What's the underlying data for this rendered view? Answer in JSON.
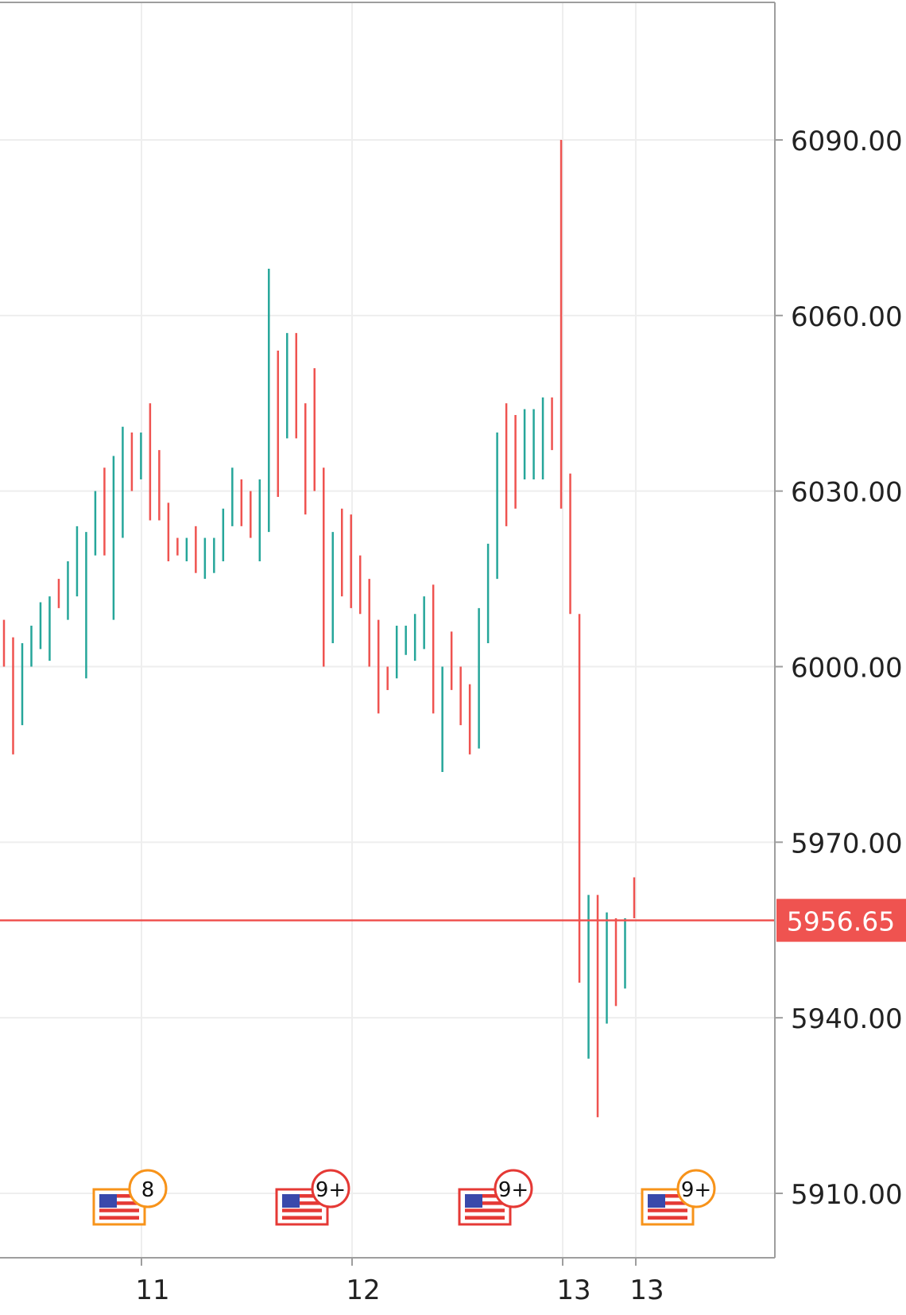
{
  "chart_data": {
    "type": "ohlc",
    "price_axis": {
      "ticks": [
        6090,
        6060,
        6030,
        6000,
        5970,
        5940,
        5910
      ],
      "tick_labels": [
        "6090.00",
        "6060.00",
        "6030.00",
        "6000.00",
        "5970.00",
        "5940.00",
        "5910.00"
      ],
      "range": [
        5898,
        6113
      ]
    },
    "time_axis": {
      "labels": [
        "11",
        "12",
        "13",
        "13"
      ]
    },
    "last_price": {
      "value": 5956.65,
      "label": "5956.65",
      "color": "#ef5350"
    },
    "colors": {
      "up": "#26a69a",
      "down": "#ef5350",
      "grid": "#eeeeee",
      "axis": "#9e9e9e",
      "text": "#222222"
    },
    "bars": [
      {
        "dir": "down",
        "high": 6008,
        "low": 6000
      },
      {
        "dir": "down",
        "high": 6005,
        "low": 5985
      },
      {
        "dir": "up",
        "high": 6004,
        "low": 5990
      },
      {
        "dir": "up",
        "high": 6007,
        "low": 6000
      },
      {
        "dir": "up",
        "high": 6011,
        "low": 6003
      },
      {
        "dir": "up",
        "high": 6012,
        "low": 6001
      },
      {
        "dir": "down",
        "high": 6015,
        "low": 6010
      },
      {
        "dir": "up",
        "high": 6018,
        "low": 6008
      },
      {
        "dir": "up",
        "high": 6024,
        "low": 6012
      },
      {
        "dir": "up",
        "high": 6023,
        "low": 5998
      },
      {
        "dir": "up",
        "high": 6030,
        "low": 6019
      },
      {
        "dir": "down",
        "high": 6034,
        "low": 6019
      },
      {
        "dir": "up",
        "high": 6036,
        "low": 6008
      },
      {
        "dir": "up",
        "high": 6041,
        "low": 6022
      },
      {
        "dir": "down",
        "high": 6040,
        "low": 6030
      },
      {
        "dir": "up",
        "high": 6040,
        "low": 6032
      },
      {
        "dir": "down",
        "high": 6045,
        "low": 6025
      },
      {
        "dir": "down",
        "high": 6037,
        "low": 6025
      },
      {
        "dir": "down",
        "high": 6028,
        "low": 6018
      },
      {
        "dir": "down",
        "high": 6022,
        "low": 6019
      },
      {
        "dir": "up",
        "high": 6022,
        "low": 6018
      },
      {
        "dir": "down",
        "high": 6024,
        "low": 6016
      },
      {
        "dir": "up",
        "high": 6022,
        "low": 6015
      },
      {
        "dir": "up",
        "high": 6022,
        "low": 6016
      },
      {
        "dir": "up",
        "high": 6027,
        "low": 6018
      },
      {
        "dir": "up",
        "high": 6034,
        "low": 6024
      },
      {
        "dir": "down",
        "high": 6032,
        "low": 6024
      },
      {
        "dir": "down",
        "high": 6030,
        "low": 6022
      },
      {
        "dir": "up",
        "high": 6032,
        "low": 6018
      },
      {
        "dir": "up",
        "high": 6068,
        "low": 6023
      },
      {
        "dir": "down",
        "high": 6054,
        "low": 6029
      },
      {
        "dir": "up",
        "high": 6057,
        "low": 6039
      },
      {
        "dir": "down",
        "high": 6057,
        "low": 6039
      },
      {
        "dir": "down",
        "high": 6045,
        "low": 6026
      },
      {
        "dir": "down",
        "high": 6051,
        "low": 6030
      },
      {
        "dir": "down",
        "high": 6034,
        "low": 6000
      },
      {
        "dir": "up",
        "high": 6023,
        "low": 6004
      },
      {
        "dir": "down",
        "high": 6027,
        "low": 6012
      },
      {
        "dir": "down",
        "high": 6026,
        "low": 6010
      },
      {
        "dir": "down",
        "high": 6019,
        "low": 6009
      },
      {
        "dir": "down",
        "high": 6015,
        "low": 6000
      },
      {
        "dir": "down",
        "high": 6008,
        "low": 5992
      },
      {
        "dir": "down",
        "high": 6000,
        "low": 5996
      },
      {
        "dir": "up",
        "high": 6007,
        "low": 5998
      },
      {
        "dir": "up",
        "high": 6007,
        "low": 6002
      },
      {
        "dir": "up",
        "high": 6009,
        "low": 6001
      },
      {
        "dir": "up",
        "high": 6012,
        "low": 6003
      },
      {
        "dir": "down",
        "high": 6014,
        "low": 5992
      },
      {
        "dir": "up",
        "high": 6000,
        "low": 5982
      },
      {
        "dir": "down",
        "high": 6006,
        "low": 5996
      },
      {
        "dir": "down",
        "high": 6000,
        "low": 5990
      },
      {
        "dir": "down",
        "high": 5997,
        "low": 5985
      },
      {
        "dir": "up",
        "high": 6010,
        "low": 5986
      },
      {
        "dir": "up",
        "high": 6021,
        "low": 6004
      },
      {
        "dir": "up",
        "high": 6040,
        "low": 6015
      },
      {
        "dir": "down",
        "high": 6045,
        "low": 6024
      },
      {
        "dir": "down",
        "high": 6043,
        "low": 6027
      },
      {
        "dir": "up",
        "high": 6044,
        "low": 6032
      },
      {
        "dir": "up",
        "high": 6044,
        "low": 6032
      },
      {
        "dir": "up",
        "high": 6046,
        "low": 6032
      },
      {
        "dir": "down",
        "high": 6046,
        "low": 6037
      },
      {
        "dir": "down",
        "high": 6090,
        "low": 6027
      },
      {
        "dir": "down",
        "high": 6033,
        "low": 6009
      },
      {
        "dir": "down",
        "high": 6009,
        "low": 5946
      },
      {
        "dir": "up",
        "high": 5961,
        "low": 5933
      },
      {
        "dir": "down",
        "high": 5961,
        "low": 5923
      },
      {
        "dir": "up",
        "high": 5958,
        "low": 5939
      },
      {
        "dir": "down",
        "high": 5957,
        "low": 5942
      },
      {
        "dir": "up",
        "high": 5957,
        "low": 5945
      },
      {
        "dir": "down",
        "high": 5964,
        "low": 5957
      }
    ],
    "events": [
      {
        "label": "8",
        "flag": "us-flag-icon",
        "color": "#f7931a"
      },
      {
        "label": "9+",
        "flag": "us-flag-icon",
        "color": "#e53935"
      },
      {
        "label": "9+",
        "flag": "us-flag-icon",
        "color": "#e53935"
      },
      {
        "label": "9+",
        "flag": "us-flag-icon",
        "color": "#f7931a"
      }
    ]
  }
}
